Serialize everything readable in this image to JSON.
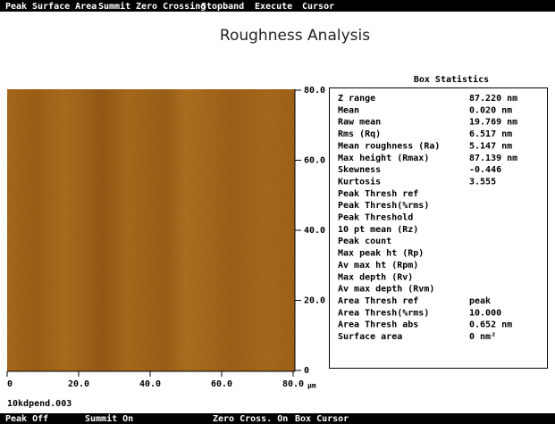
{
  "menu": [
    "Peak",
    "Surface Area",
    "Summit",
    "Zero Crossing",
    "Stopband",
    "Execute",
    "Cursor"
  ],
  "title": "Roughness Analysis",
  "image": {
    "y_ticks": [
      "80.0",
      "60.0",
      "40.0",
      "20.0",
      "0"
    ],
    "x_ticks": [
      "0",
      "20.0",
      "40.0",
      "60.0",
      "80.0"
    ],
    "x_unit": "µm",
    "filename": "10kdpend.003"
  },
  "statistics": {
    "title": "Box Statistics",
    "rows": [
      {
        "label": "Z range",
        "value": "87.220 nm"
      },
      {
        "label": "Mean",
        "value": "0.020 nm"
      },
      {
        "label": "Raw mean",
        "value": "19.769 nm"
      },
      {
        "label": "Rms (Rq)",
        "value": "6.517 nm"
      },
      {
        "label": "Mean roughness (Ra)",
        "value": "5.147 nm"
      },
      {
        "label": "Max height (Rmax)",
        "value": "87.139 nm"
      },
      {
        "label": "Skewness",
        "value": "-0.446"
      },
      {
        "label": "Kurtosis",
        "value": "3.555"
      },
      {
        "label": "Peak Thresh ref"
      },
      {
        "label": "Peak Thresh(%rms)"
      },
      {
        "label": "Peak Threshold"
      },
      {
        "label": "10 pt mean (Rz)"
      },
      {
        "label": "Peak count"
      },
      {
        "label": "Max peak ht (Rp)"
      },
      {
        "label": "Av max ht (Rpm)"
      },
      {
        "label": "Max depth (Rv)"
      },
      {
        "label": "Av max depth (Rvm)"
      },
      {
        "label": "Area Thresh ref",
        "value": "peak"
      },
      {
        "label": "Area Thresh(%rms)",
        "value": "10.000"
      },
      {
        "label": "Area Thresh abs",
        "value": "0.652 nm"
      },
      {
        "label": "Surface area",
        "value": "0 nm²"
      }
    ]
  },
  "status": [
    "Peak Off",
    "Summit On",
    "Zero Cross. On",
    "Box Cursor"
  ]
}
